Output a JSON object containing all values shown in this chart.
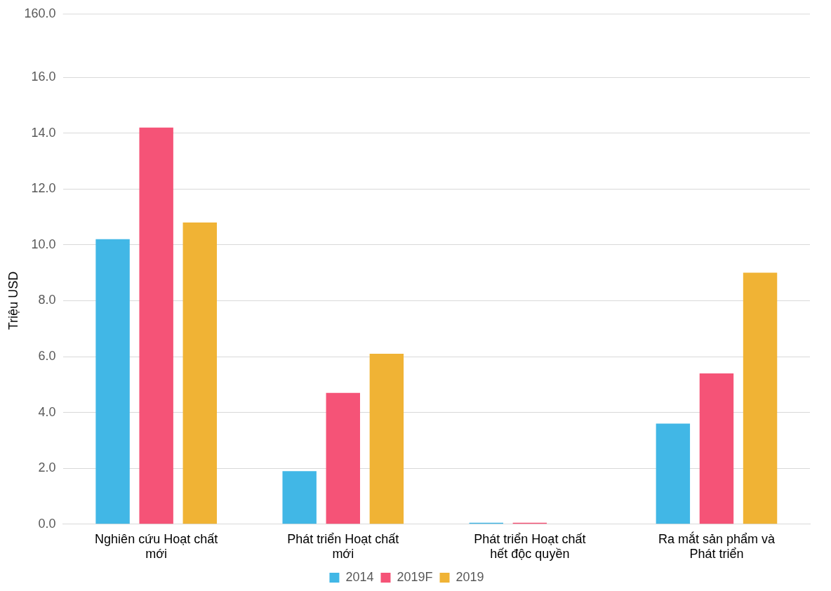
{
  "chart_data": {
    "type": "bar",
    "ylabel": "Triệu USD",
    "categories": [
      "Nghiên cứu Hoạt chất mới",
      "Phát triển Hoạt chất mới",
      "Phát triển Hoạt chất hết độc quyền",
      "Ra mắt sản phẩm và Phát triển"
    ],
    "series": [
      {
        "name": "2014",
        "color": "#41b7e6",
        "values": [
          10.2,
          1.9,
          0.05,
          3.6
        ]
      },
      {
        "name": "2019F",
        "color": "#f55377",
        "values": [
          14.2,
          4.7,
          0.05,
          5.4
        ]
      },
      {
        "name": "2019",
        "color": "#f0b335",
        "values": [
          10.8,
          6.1,
          0,
          9.0
        ]
      }
    ],
    "ylim": [
      0,
      16
    ],
    "yticks": [
      {
        "value": 0,
        "label": "0.0"
      },
      {
        "value": 2,
        "label": "2.0"
      },
      {
        "value": 4,
        "label": "4.0"
      },
      {
        "value": 6,
        "label": "6.0"
      },
      {
        "value": 8,
        "label": "8.0"
      },
      {
        "value": 10,
        "label": "10.0"
      },
      {
        "value": 12,
        "label": "12.0"
      },
      {
        "value": 14,
        "label": "14.0"
      },
      {
        "value": 16,
        "label": "16.0"
      }
    ],
    "annotations": [
      "160.0"
    ],
    "grid": "y",
    "legend": "bottom"
  }
}
